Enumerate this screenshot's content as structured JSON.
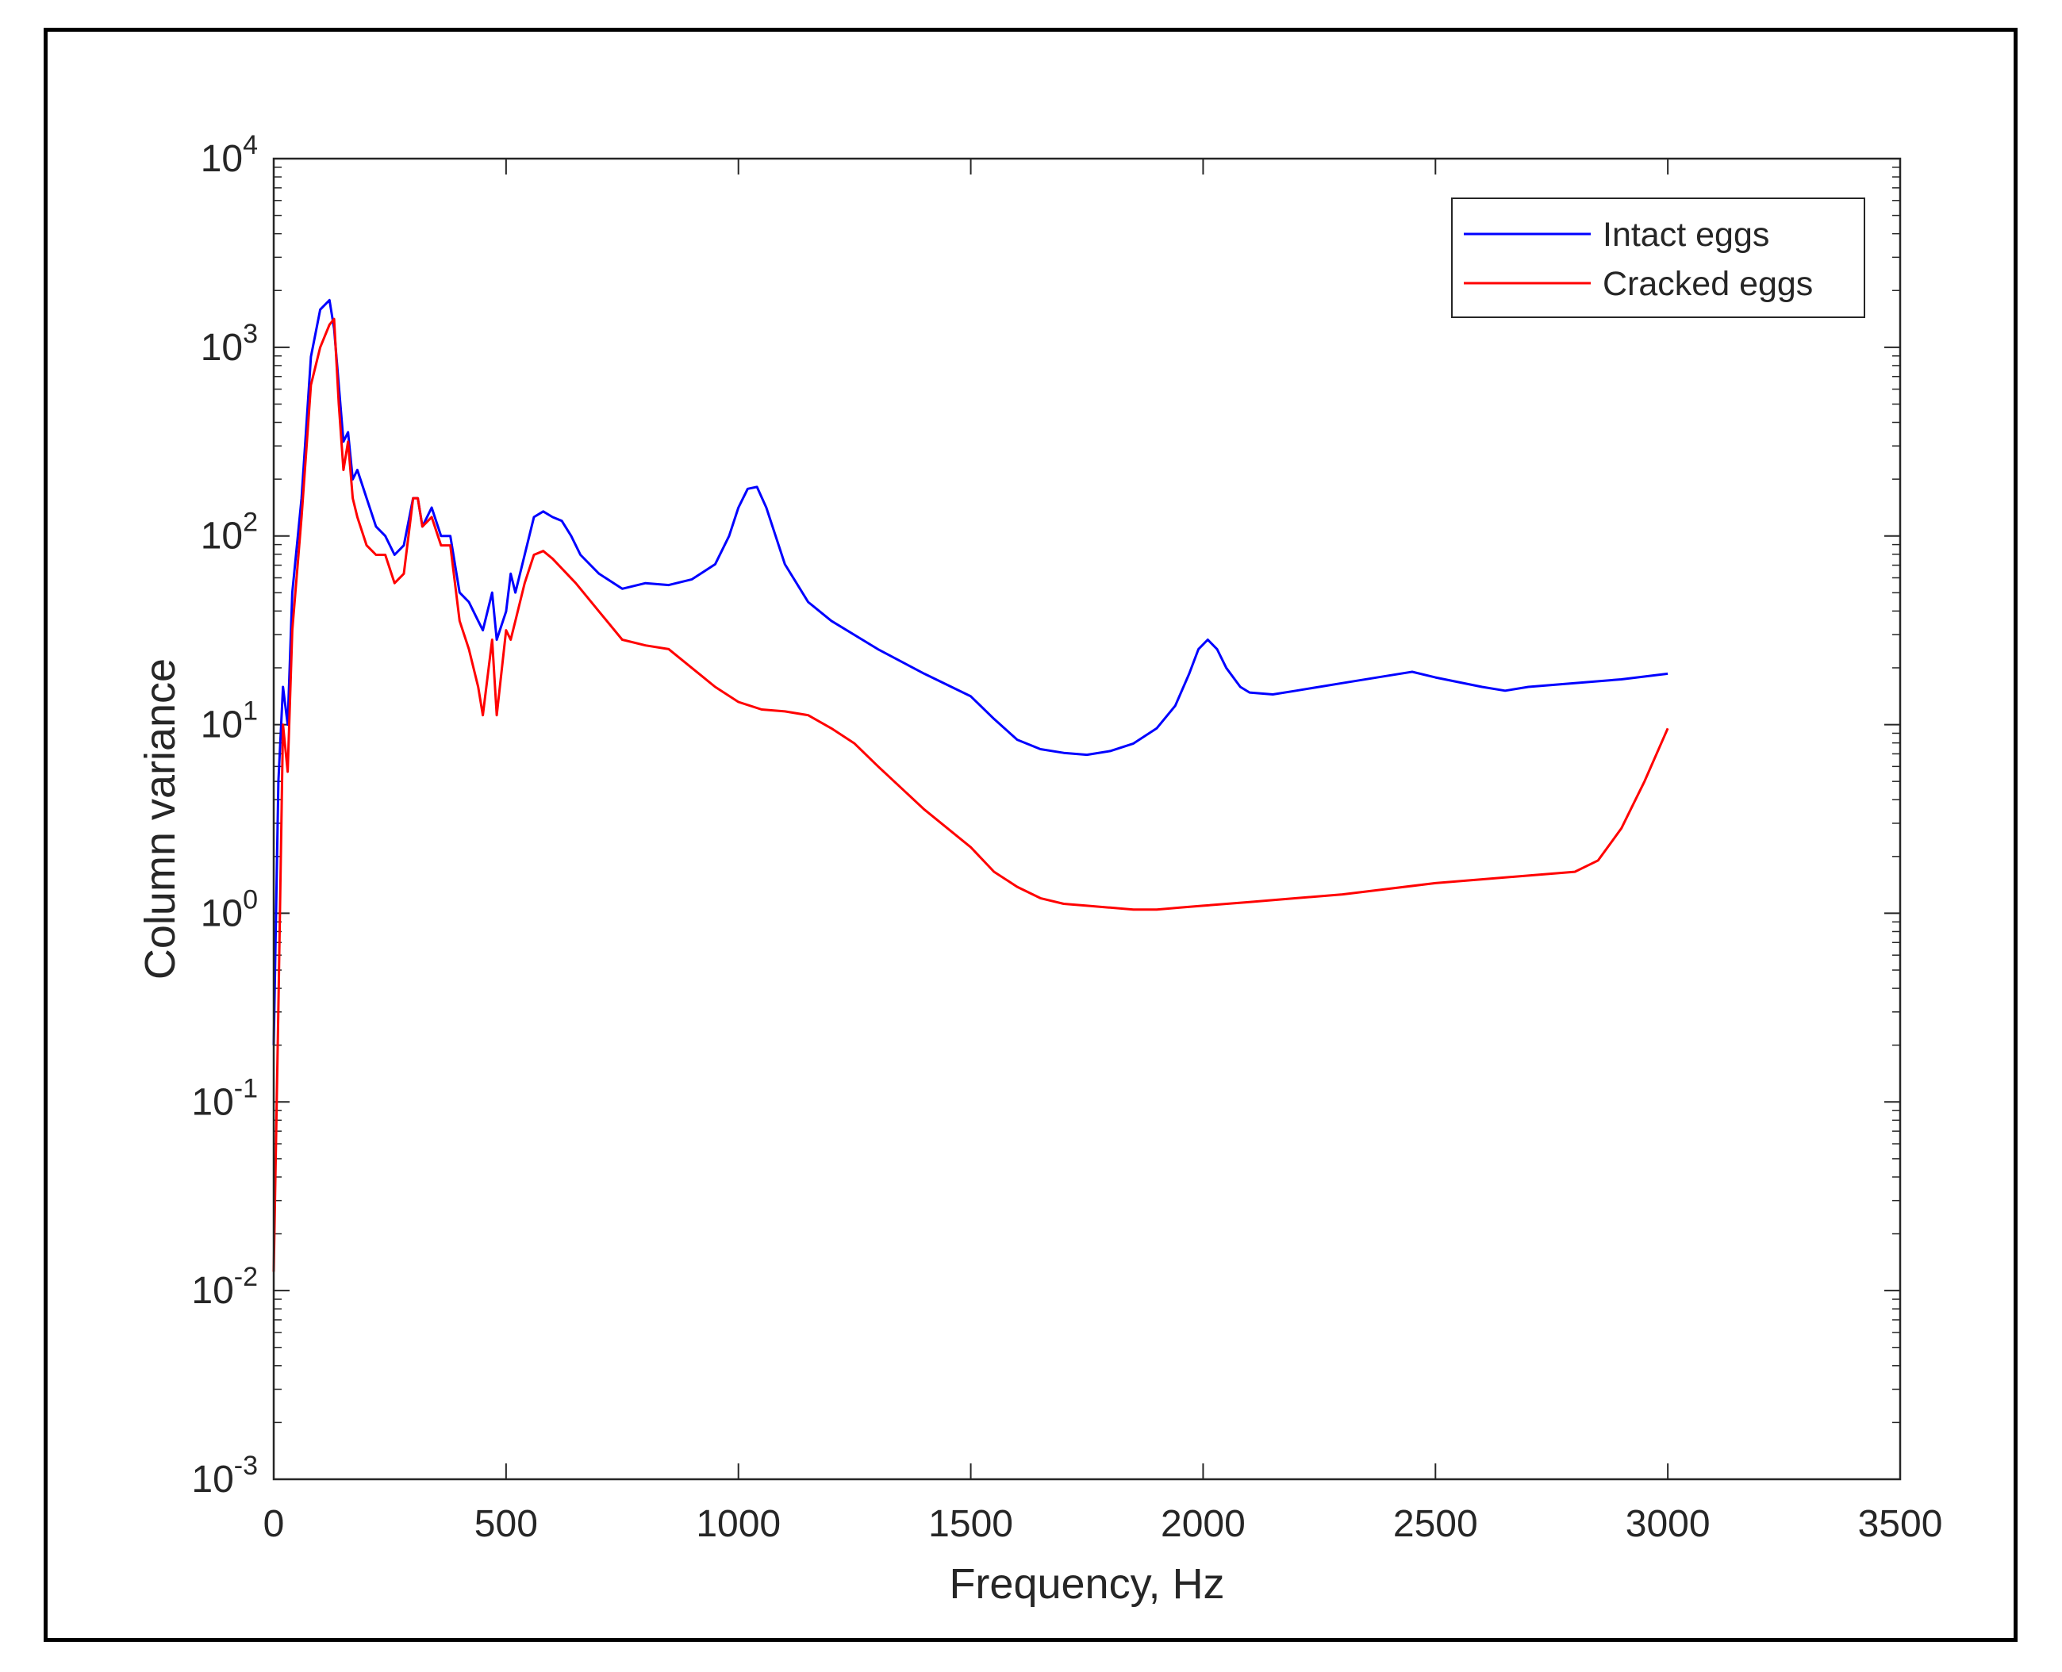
{
  "chart_data": {
    "type": "line",
    "title": "",
    "xlabel": "Frequency, Hz",
    "ylabel": "Column variance",
    "xlim": [
      0,
      3500
    ],
    "ylim_log10": [
      -3,
      4
    ],
    "yscale": "log",
    "xticks": [
      "0",
      "500",
      "1000",
      "1500",
      "2000",
      "2500",
      "3000",
      "3500"
    ],
    "xtick_values": [
      0,
      500,
      1000,
      1500,
      2000,
      2500,
      3000,
      3500
    ],
    "yticks": [
      {
        "base": "10",
        "exp": "-3",
        "value": -3
      },
      {
        "base": "10",
        "exp": "-2",
        "value": -2
      },
      {
        "base": "10",
        "exp": "-1",
        "value": -1
      },
      {
        "base": "10",
        "exp": "0",
        "value": 0
      },
      {
        "base": "10",
        "exp": "1",
        "value": 1
      },
      {
        "base": "10",
        "exp": "2",
        "value": 2
      },
      {
        "base": "10",
        "exp": "3",
        "value": 3
      },
      {
        "base": "10",
        "exp": "4",
        "value": 4
      }
    ],
    "grid": false,
    "legend_position": "top-right",
    "series": [
      {
        "name": "Intact eggs",
        "color": "#0000ff",
        "x": [
          0,
          10,
          20,
          30,
          40,
          60,
          80,
          100,
          120,
          130,
          140,
          150,
          160,
          170,
          180,
          200,
          220,
          240,
          260,
          280,
          300,
          310,
          320,
          340,
          360,
          380,
          400,
          420,
          440,
          450,
          470,
          480,
          500,
          510,
          520,
          540,
          560,
          580,
          600,
          620,
          640,
          660,
          700,
          750,
          800,
          850,
          900,
          950,
          980,
          1000,
          1020,
          1040,
          1060,
          1080,
          1100,
          1150,
          1200,
          1300,
          1400,
          1500,
          1550,
          1600,
          1650,
          1700,
          1750,
          1800,
          1850,
          1900,
          1940,
          1970,
          1990,
          2010,
          2030,
          2050,
          2080,
          2100,
          2150,
          2200,
          2300,
          2400,
          2450,
          2500,
          2600,
          2650,
          2700,
          2800,
          2900,
          3000
        ],
        "y_log10": [
          -0.7,
          0.7,
          1.2,
          1.0,
          1.7,
          2.2,
          2.95,
          3.2,
          3.25,
          3.1,
          2.8,
          2.5,
          2.55,
          2.3,
          2.35,
          2.2,
          2.05,
          2.0,
          1.9,
          1.95,
          2.2,
          2.2,
          2.05,
          2.15,
          2.0,
          2.0,
          1.7,
          1.65,
          1.55,
          1.5,
          1.7,
          1.45,
          1.6,
          1.8,
          1.7,
          1.9,
          2.1,
          2.13,
          2.1,
          2.08,
          2.0,
          1.9,
          1.8,
          1.72,
          1.75,
          1.74,
          1.77,
          1.85,
          2.0,
          2.15,
          2.25,
          2.26,
          2.15,
          2.0,
          1.85,
          1.65,
          1.55,
          1.4,
          1.27,
          1.15,
          1.03,
          0.92,
          0.87,
          0.85,
          0.84,
          0.86,
          0.9,
          0.98,
          1.1,
          1.27,
          1.4,
          1.45,
          1.4,
          1.3,
          1.2,
          1.17,
          1.16,
          1.18,
          1.22,
          1.26,
          1.28,
          1.25,
          1.2,
          1.18,
          1.2,
          1.22,
          1.24,
          1.27
        ]
      },
      {
        "name": "Cracked eggs",
        "color": "#ff0000",
        "x": [
          0,
          10,
          20,
          30,
          40,
          60,
          80,
          100,
          120,
          130,
          140,
          150,
          160,
          170,
          180,
          200,
          220,
          240,
          260,
          280,
          300,
          310,
          320,
          340,
          360,
          380,
          400,
          420,
          440,
          450,
          470,
          480,
          500,
          510,
          520,
          540,
          560,
          580,
          600,
          650,
          700,
          750,
          800,
          850,
          900,
          950,
          1000,
          1050,
          1100,
          1150,
          1200,
          1250,
          1300,
          1400,
          1500,
          1550,
          1600,
          1650,
          1700,
          1750,
          1800,
          1850,
          1900,
          1950,
          2000,
          2100,
          2200,
          2300,
          2400,
          2500,
          2600,
          2700,
          2800,
          2850,
          2900,
          2950,
          3000
        ],
        "y_log10": [
          -1.9,
          -0.5,
          1.0,
          0.75,
          1.5,
          2.1,
          2.8,
          3.0,
          3.12,
          3.15,
          2.7,
          2.35,
          2.5,
          2.2,
          2.1,
          1.95,
          1.9,
          1.9,
          1.75,
          1.8,
          2.2,
          2.2,
          2.05,
          2.1,
          1.95,
          1.95,
          1.55,
          1.4,
          1.2,
          1.05,
          1.45,
          1.05,
          1.5,
          1.45,
          1.55,
          1.75,
          1.9,
          1.92,
          1.88,
          1.75,
          1.6,
          1.45,
          1.42,
          1.4,
          1.3,
          1.2,
          1.12,
          1.08,
          1.07,
          1.05,
          0.98,
          0.9,
          0.78,
          0.55,
          0.35,
          0.22,
          0.14,
          0.08,
          0.05,
          0.04,
          0.03,
          0.02,
          0.02,
          0.03,
          0.04,
          0.06,
          0.08,
          0.1,
          0.13,
          0.16,
          0.18,
          0.2,
          0.22,
          0.28,
          0.45,
          0.7,
          0.98
        ]
      }
    ]
  }
}
